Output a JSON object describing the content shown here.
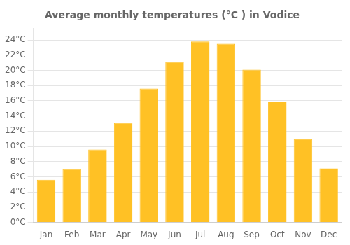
{
  "chart_data": {
    "type": "bar",
    "title": "Average monthly temperatures (°C ) in Vodice",
    "categories": [
      "Jan",
      "Feb",
      "Mar",
      "Apr",
      "May",
      "Jun",
      "Jul",
      "Aug",
      "Sep",
      "Oct",
      "Nov",
      "Dec"
    ],
    "values": [
      5.6,
      7.0,
      9.6,
      13.1,
      17.6,
      21.1,
      23.8,
      23.5,
      20.1,
      15.9,
      11.0,
      7.1
    ],
    "color": "#FFC125",
    "ylim": [
      0,
      25.5
    ],
    "yticks": [
      {
        "value": 0,
        "label": "0°C"
      },
      {
        "value": 2,
        "label": "2°C"
      },
      {
        "value": 4,
        "label": "4°C"
      },
      {
        "value": 6,
        "label": "6°C"
      },
      {
        "value": 8,
        "label": "8°C"
      },
      {
        "value": 10,
        "label": "10°C"
      },
      {
        "value": 12,
        "label": "12°C"
      },
      {
        "value": 14,
        "label": "14°C"
      },
      {
        "value": 16,
        "label": "16°C"
      },
      {
        "value": 18,
        "label": "18°C"
      },
      {
        "value": 20,
        "label": "20°C"
      },
      {
        "value": 22,
        "label": "22°C"
      },
      {
        "value": 24,
        "label": "24°C"
      }
    ],
    "grid": true
  }
}
